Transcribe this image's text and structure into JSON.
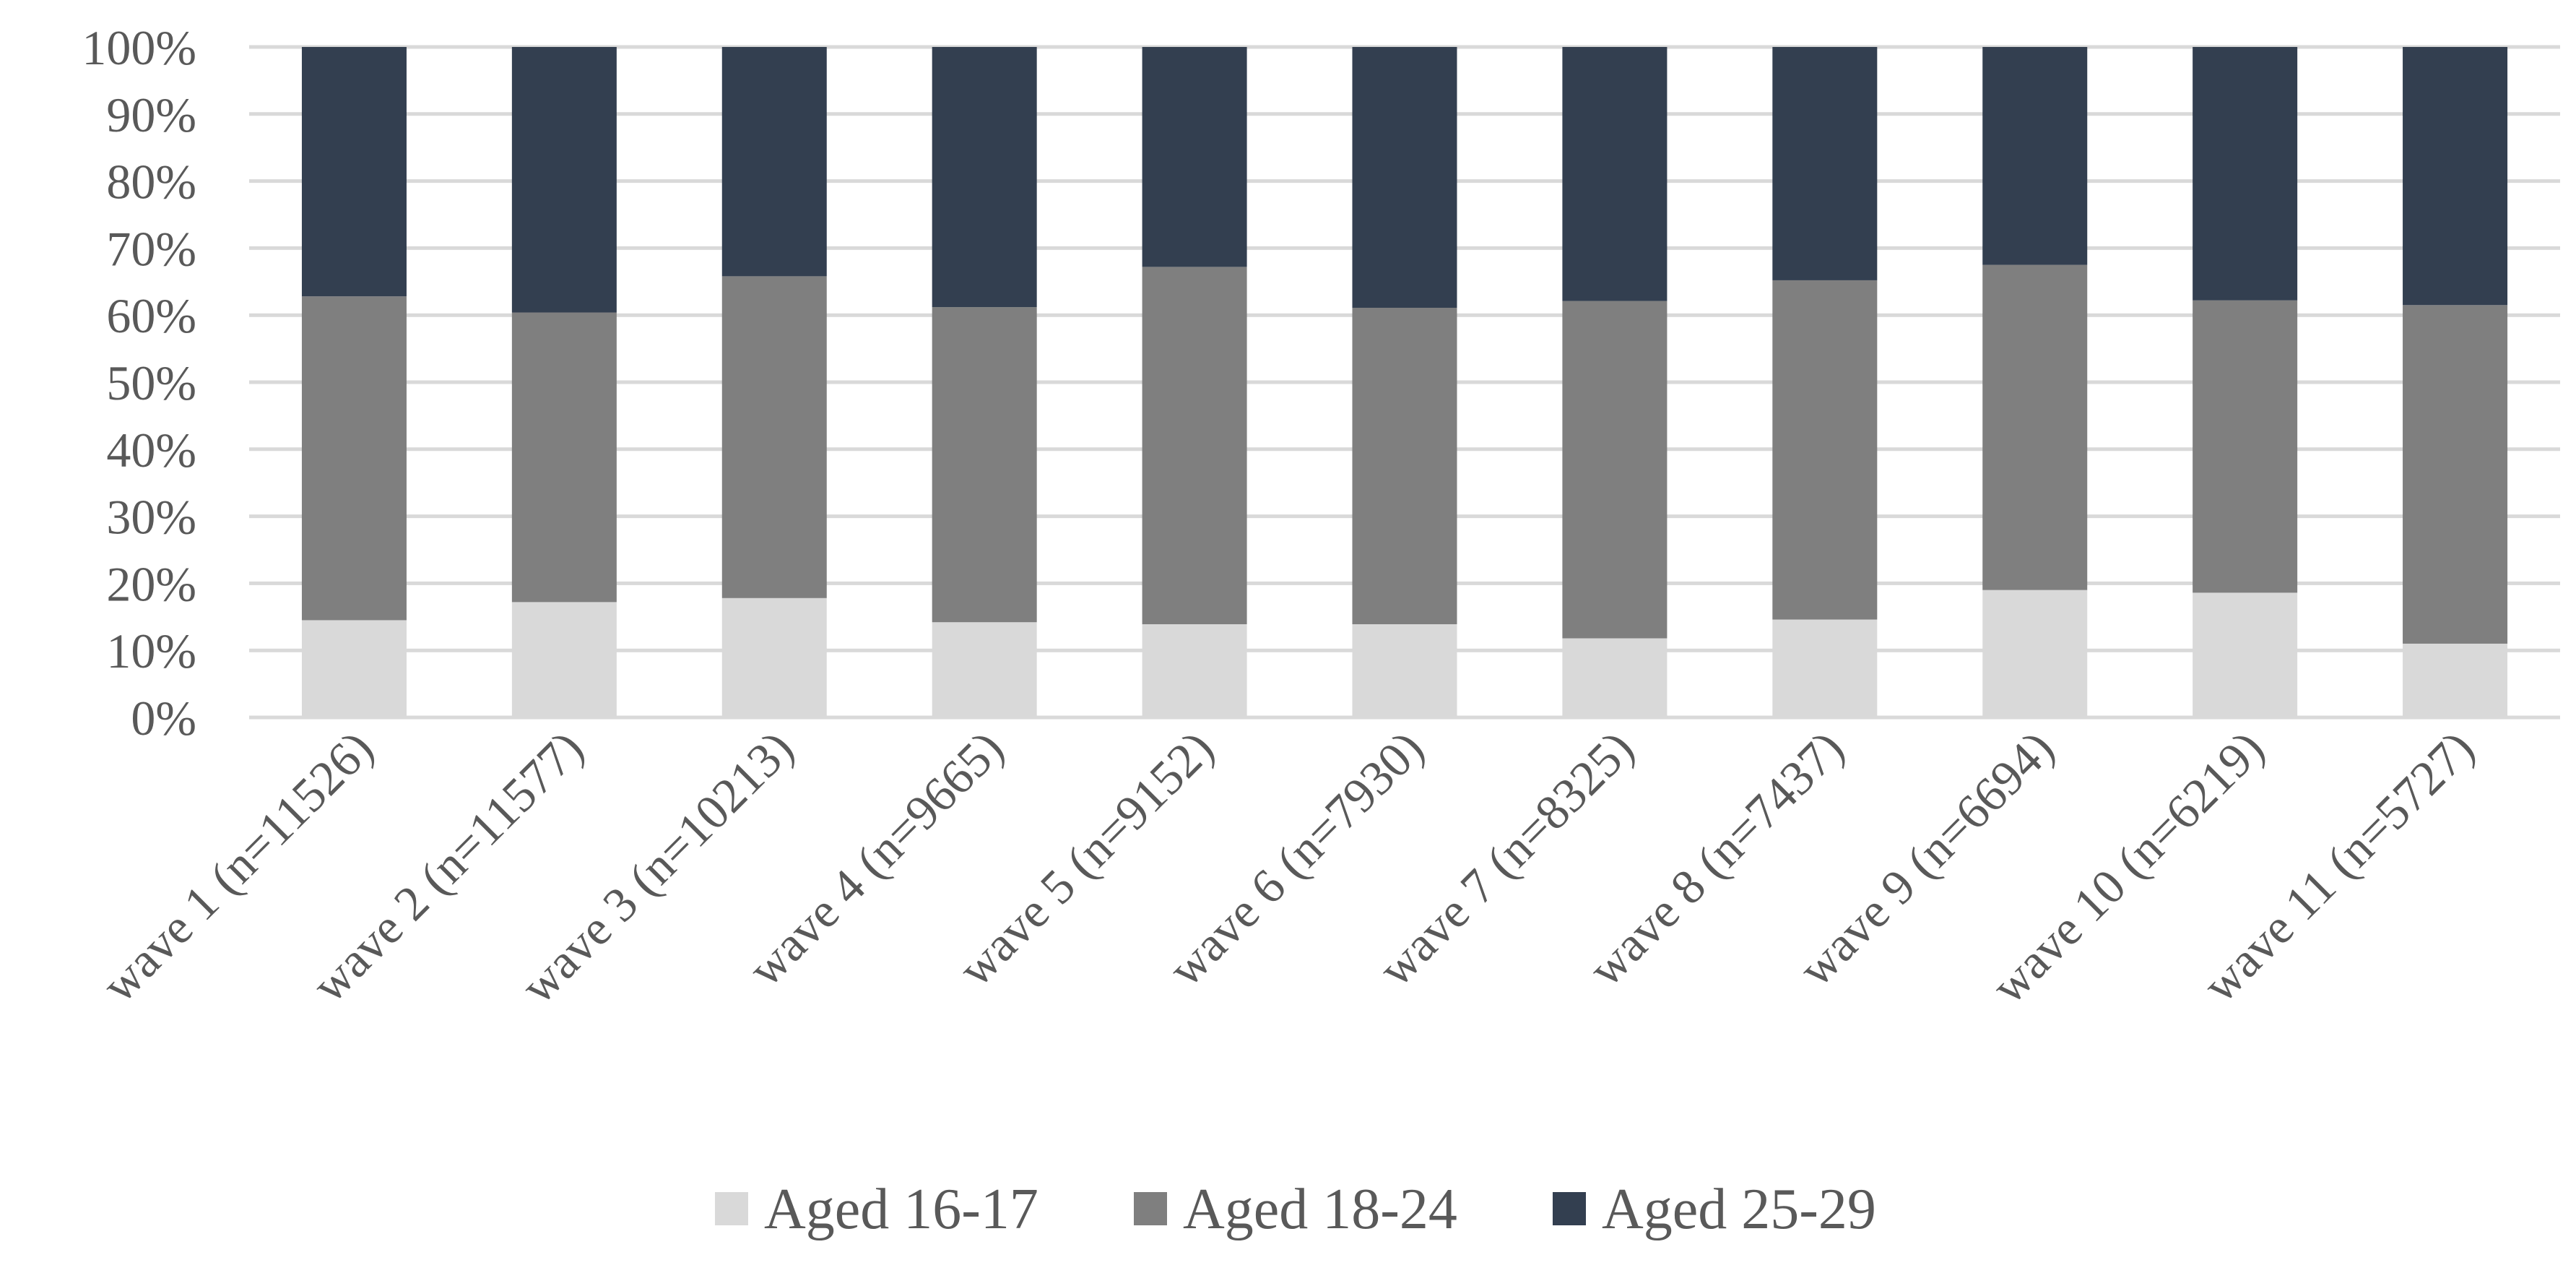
{
  "chart_data": {
    "type": "bar",
    "stacked": true,
    "percent": true,
    "categories": [
      "wave 1 (n=11526)",
      "wave 2 (n=11577)",
      "wave 3 (n=10213)",
      "wave 4 (n=9665)",
      "wave 5 (n=9152)",
      "wave 6 (n=7930)",
      "wave 7 (n=8325)",
      "wave 8 (n=7437)",
      "wave 9 (n=6694)",
      "wave 10 (n=6219)",
      "wave 11 (n=5727)"
    ],
    "series": [
      {
        "name": "Aged 16-17",
        "color": "#d9d9d9",
        "values": [
          14.5,
          17.2,
          17.8,
          14.2,
          13.9,
          13.9,
          11.8,
          14.6,
          19.0,
          18.6,
          11.0
        ]
      },
      {
        "name": "Aged 18-24",
        "color": "#7f7f7f",
        "values": [
          48.3,
          43.2,
          48.0,
          47.0,
          53.3,
          47.2,
          50.3,
          50.6,
          48.5,
          43.6,
          50.5
        ]
      },
      {
        "name": "Aged 25-29",
        "color": "#333f50",
        "values": [
          37.2,
          39.6,
          34.2,
          38.8,
          32.8,
          38.9,
          37.9,
          34.8,
          32.5,
          37.8,
          38.5
        ]
      }
    ],
    "y_ticks": [
      "0%",
      "10%",
      "20%",
      "30%",
      "40%",
      "50%",
      "60%",
      "70%",
      "80%",
      "90%",
      "100%"
    ],
    "ylim": [
      0,
      100
    ],
    "grid": true,
    "legend_position": "bottom",
    "title": "",
    "xlabel": "",
    "ylabel": ""
  }
}
